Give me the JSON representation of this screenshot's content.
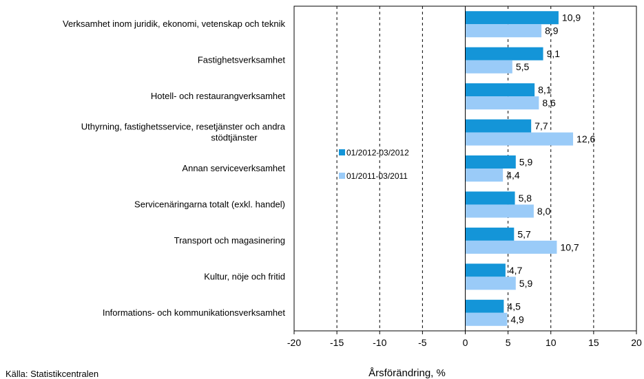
{
  "chart_data": {
    "type": "bar",
    "orientation": "horizontal",
    "categories": [
      [
        "Verksamhet inom juridik, ekonomi, vetenskap och teknik"
      ],
      [
        "Fastighetsverksamhet"
      ],
      [
        "Hotell- och restaurangverksamhet"
      ],
      [
        "Uthyrning, fastighetsservice, resetjänster och andra",
        "stödtjänster"
      ],
      [
        "Annan serviceverksamhet"
      ],
      [
        "Servicenäringarna totalt (exkl. handel)"
      ],
      [
        "Transport och magasinering"
      ],
      [
        "Kultur, nöje och fritid"
      ],
      [
        "Informations- och kommunikationsverksamhet"
      ]
    ],
    "series": [
      {
        "name": "01/2012-03/2012",
        "color": "#1495d8",
        "values": [
          10.9,
          9.1,
          8.1,
          7.7,
          5.9,
          5.8,
          5.7,
          4.7,
          4.5
        ],
        "labels": [
          "10,9",
          "9,1",
          "8,1",
          "7,7",
          "5,9",
          "5,8",
          "5,7",
          "4,7",
          "4,5"
        ]
      },
      {
        "name": "01/2011-03/2011",
        "color": "#9acbf8",
        "values": [
          8.9,
          5.5,
          8.6,
          12.6,
          4.4,
          8.0,
          10.7,
          5.9,
          4.9
        ],
        "labels": [
          "8,9",
          "5,5",
          "8,6",
          "12,6",
          "4,4",
          "8,0",
          "10,7",
          "5,9",
          "4,9"
        ]
      }
    ],
    "xlim": [
      -20,
      20
    ],
    "xticks": [
      -20,
      -15,
      -10,
      -5,
      0,
      5,
      10,
      15,
      20
    ],
    "xtick_labels": [
      "-20",
      "-15",
      "-10",
      "-5",
      "0",
      "5",
      "10",
      "15",
      "20"
    ],
    "xlabel": "Årsförändring, %",
    "grid": "vertical-dashed",
    "legend_position": "center-left"
  },
  "source": "Källa: Statistikcentralen"
}
